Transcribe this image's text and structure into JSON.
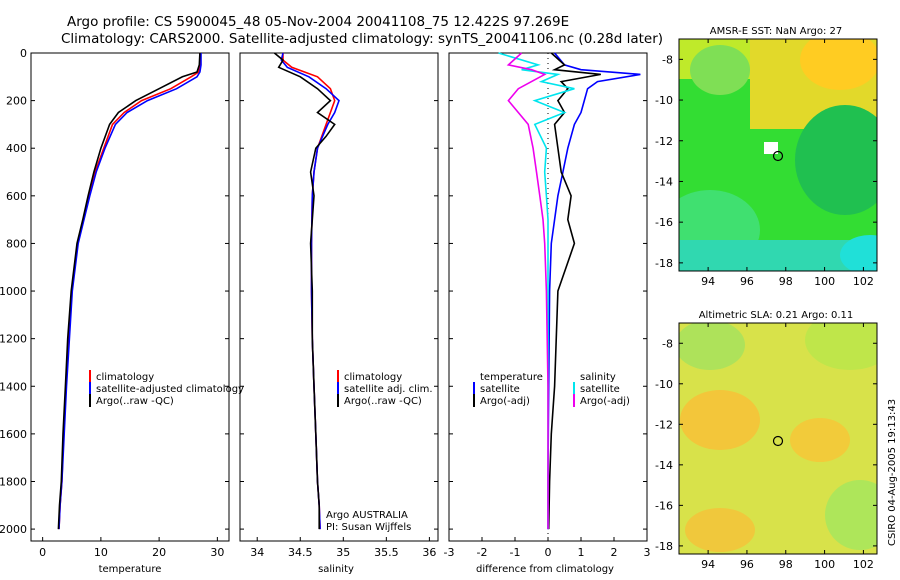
{
  "title_line1": "Argo profile: CS 5900045_48 05-Nov-2004 20041108_75 12.422S 97.269E",
  "title_line2": "Climatology: CARS2000. Satellite-adjusted climatology: synTS_20041106.nc (0.28d later)",
  "credit": "CSIRO 04-Aug-2005 19:13:43",
  "colors": {
    "red": "#ff0000",
    "blue": "#0000ff",
    "black": "#000000",
    "cyan": "#00e5ee",
    "magenta": "#ee00ee"
  },
  "chart_data": [
    {
      "type": "line",
      "id": "temperature",
      "xlabel": "temperature",
      "ylabel": "",
      "xlim": [
        -2,
        32
      ],
      "ylim": [
        2050,
        0
      ],
      "xticks": [
        "0",
        "10",
        "20",
        "30"
      ],
      "yticks": [
        "0",
        "200",
        "400",
        "600",
        "800",
        "1000",
        "1200",
        "1400",
        "1600",
        "1800",
        "2000"
      ],
      "legend": [
        "climatology",
        "satellite-adjusted climatology",
        "Argo(..raw -QC)"
      ],
      "legend_position": "bottom-right",
      "series": [
        {
          "name": "climatology",
          "color": "red",
          "x": [
            27,
            27,
            26.8,
            25.5,
            22,
            17,
            14,
            12,
            10.5,
            9,
            8,
            7,
            6,
            5,
            4.5,
            4,
            3.6,
            3.3,
            3,
            2.8
          ],
          "y": [
            0,
            50,
            80,
            100,
            150,
            200,
            250,
            300,
            400,
            500,
            600,
            700,
            800,
            1000,
            1200,
            1400,
            1600,
            1800,
            1900,
            2000
          ]
        },
        {
          "name": "satellite-adjusted climatology",
          "color": "blue",
          "x": [
            27.2,
            27.2,
            27,
            26.5,
            23,
            18,
            14.5,
            12.5,
            10.7,
            9.2,
            8.1,
            7.1,
            6.1,
            5.1,
            4.6,
            4.1,
            3.7,
            3.3,
            3,
            2.8
          ],
          "y": [
            0,
            50,
            80,
            100,
            150,
            200,
            250,
            300,
            400,
            500,
            600,
            700,
            800,
            1000,
            1200,
            1400,
            1600,
            1800,
            1900,
            2000
          ]
        },
        {
          "name": "Argo(..raw -QC)",
          "color": "black",
          "x": [
            27,
            26.9,
            26.5,
            24,
            20,
            16,
            13,
            11.5,
            10,
            8.8,
            7.8,
            6.9,
            5.9,
            4.9,
            4.3,
            3.9,
            3.5,
            3.2,
            2.9,
            2.7
          ],
          "y": [
            0,
            50,
            80,
            100,
            150,
            200,
            250,
            300,
            400,
            500,
            600,
            700,
            800,
            1000,
            1200,
            1400,
            1600,
            1800,
            1900,
            2000
          ]
        }
      ]
    },
    {
      "type": "line",
      "id": "salinity",
      "xlabel": "salinity",
      "xlim": [
        33.8,
        36.1
      ],
      "ylim": [
        2050,
        0
      ],
      "xticks": [
        "34",
        "34.5",
        "35",
        "35.5",
        "36"
      ],
      "legend": [
        "climatology",
        "satellite adj. clim.",
        "Argo(..raw -QC)"
      ],
      "legend_position": "bottom-right",
      "annotations": [
        "Argo AUSTRALIA",
        "PI: Susan Wijffels"
      ],
      "series": [
        {
          "name": "climatology",
          "color": "red",
          "x": [
            34.3,
            34.3,
            34.4,
            34.7,
            34.85,
            34.9,
            34.85,
            34.8,
            34.75,
            34.7,
            34.66,
            34.64,
            34.63,
            34.63,
            34.64,
            34.66,
            34.68,
            34.7,
            34.72,
            34.73
          ],
          "y": [
            0,
            30,
            60,
            100,
            150,
            200,
            250,
            300,
            350,
            400,
            500,
            600,
            800,
            1000,
            1200,
            1400,
            1600,
            1800,
            1900,
            2000
          ]
        },
        {
          "name": "satellite adj. clim.",
          "color": "blue",
          "x": [
            34.3,
            34.28,
            34.35,
            34.6,
            34.8,
            34.95,
            34.9,
            34.82,
            34.76,
            34.7,
            34.66,
            34.64,
            34.63,
            34.63,
            34.64,
            34.66,
            34.68,
            34.7,
            34.72,
            34.73
          ],
          "y": [
            0,
            30,
            60,
            100,
            150,
            200,
            250,
            300,
            350,
            400,
            500,
            600,
            800,
            1000,
            1200,
            1400,
            1600,
            1800,
            1900,
            2000
          ]
        },
        {
          "name": "Argo(..raw -QC)",
          "color": "black",
          "x": [
            34.2,
            34.3,
            34.25,
            34.5,
            34.7,
            34.85,
            34.7,
            34.9,
            34.8,
            34.68,
            34.62,
            34.66,
            34.62,
            34.64,
            34.64,
            34.66,
            34.68,
            34.7,
            34.72,
            34.72
          ],
          "y": [
            0,
            30,
            60,
            100,
            150,
            200,
            250,
            300,
            350,
            400,
            500,
            600,
            800,
            1000,
            1200,
            1400,
            1600,
            1800,
            1900,
            2000
          ]
        }
      ]
    },
    {
      "type": "line",
      "id": "difference",
      "xlabel": "difference from climatology",
      "xlim": [
        -3,
        3
      ],
      "ylim": [
        2050,
        0
      ],
      "xticks": [
        "-3",
        "-2",
        "-1",
        "0",
        "1",
        "2",
        "3"
      ],
      "legend_left": [
        "temperature",
        "satellite",
        "Argo(-adj)"
      ],
      "legend_right": [
        "salinity",
        "satellite",
        "Argo(-adj)"
      ],
      "series": [
        {
          "name": "temperature satellite",
          "color": "blue",
          "x": [
            0.2,
            0.5,
            1,
            2.8,
            1.5,
            1.2,
            1.1,
            1.0,
            0.8,
            0.6,
            0.45,
            0.3,
            0.2,
            0.1,
            0.05,
            0.02,
            0.01,
            0,
            0
          ],
          "y": [
            0,
            50,
            70,
            90,
            120,
            150,
            200,
            250,
            300,
            400,
            500,
            600,
            700,
            800,
            1000,
            1400,
            1600,
            1800,
            2000
          ]
        },
        {
          "name": "temperature Argo(-adj)",
          "color": "black",
          "x": [
            0.1,
            0.5,
            0.2,
            1.6,
            0.4,
            0.6,
            0.3,
            0.5,
            0.2,
            0.3,
            0.4,
            0.7,
            0.6,
            0.8,
            0.3,
            0.2,
            0.1,
            0.05,
            0.02
          ],
          "y": [
            0,
            50,
            70,
            90,
            120,
            150,
            200,
            250,
            300,
            400,
            500,
            600,
            700,
            800,
            1000,
            1400,
            1600,
            1800,
            2000
          ]
        },
        {
          "name": "salinity satellite",
          "color": "cyan",
          "x": [
            -1.5,
            -0.3,
            -0.8,
            0.3,
            -0.2,
            0.8,
            -0.4,
            0.5,
            -0.4,
            -0.05,
            -0.1,
            -0.05,
            0,
            0,
            0,
            0,
            0,
            0,
            0
          ],
          "y": [
            0,
            50,
            70,
            90,
            120,
            150,
            200,
            250,
            300,
            400,
            500,
            600,
            700,
            800,
            1000,
            1400,
            1600,
            1800,
            2000
          ]
        },
        {
          "name": "salinity Argo(-adj)",
          "color": "magenta",
          "x": [
            -0.8,
            -1.2,
            -0.5,
            -0.1,
            -0.5,
            -0.9,
            -1.2,
            -0.9,
            -0.6,
            -0.45,
            -0.35,
            -0.25,
            -0.15,
            -0.1,
            -0.05,
            0,
            0,
            0,
            0
          ],
          "y": [
            0,
            50,
            70,
            90,
            120,
            150,
            200,
            250,
            300,
            400,
            500,
            600,
            700,
            800,
            1000,
            1400,
            1600,
            1800,
            2000
          ]
        }
      ]
    },
    {
      "type": "heatmap",
      "id": "sst_map",
      "title": "AMSR-E SST: NaN Argo: 27",
      "xticks": [
        "94",
        "96",
        "98",
        "100",
        "102"
      ],
      "yticks": [
        "-8",
        "-10",
        "-12",
        "-14",
        "-16",
        "-18"
      ],
      "xlim": [
        92.5,
        102.7
      ],
      "ylim": [
        -18.4,
        -7
      ],
      "marker": {
        "lon": 97.27,
        "lat": -12.42
      }
    },
    {
      "type": "heatmap",
      "id": "sla_map",
      "title": "Altimetric SLA: 0.21 Argo: 0.11",
      "xticks": [
        "94",
        "96",
        "98",
        "100",
        "102"
      ],
      "yticks": [
        "-8",
        "-10",
        "-12",
        "-14",
        "-16",
        "-18"
      ],
      "xlim": [
        92.5,
        102.7
      ],
      "ylim": [
        -18.4,
        -7
      ],
      "marker": {
        "lon": 97.27,
        "lat": -12.42
      }
    }
  ]
}
